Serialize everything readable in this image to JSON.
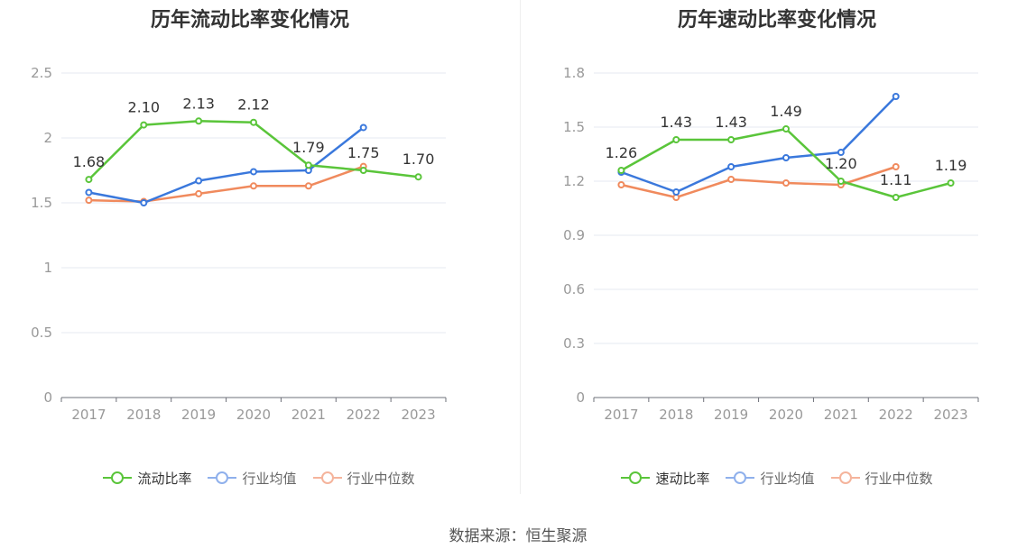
{
  "footer": {
    "source": "数据来源：恒生聚源"
  },
  "chart_data": [
    {
      "type": "line",
      "title": "历年流动比率变化情况",
      "x": [
        "2017",
        "2018",
        "2019",
        "2020",
        "2021",
        "2022",
        "2023"
      ],
      "ylim": [
        0,
        2.5
      ],
      "yticks": [
        "0",
        "0.5",
        "1",
        "1.5",
        "2",
        "2.5"
      ],
      "ytick_values": [
        0,
        0.5,
        1,
        1.5,
        2,
        2.5
      ],
      "grid": true,
      "legend_position": "bottom",
      "series": [
        {
          "name": "流动比率",
          "color": "#5ac53a",
          "values": [
            1.68,
            2.1,
            2.13,
            2.12,
            1.79,
            1.75,
            1.7
          ],
          "labels": [
            "1.68",
            "2.10",
            "2.13",
            "2.12",
            "1.79",
            "1.75",
            "1.70"
          ]
        },
        {
          "name": "行业均值",
          "color": "#3a78dc",
          "values": [
            1.58,
            1.5,
            1.67,
            1.74,
            1.75,
            2.08,
            null
          ]
        },
        {
          "name": "行业中位数",
          "color": "#f08a5d",
          "values": [
            1.52,
            1.51,
            1.57,
            1.63,
            1.63,
            1.78,
            null
          ]
        }
      ]
    },
    {
      "type": "line",
      "title": "历年速动比率变化情况",
      "x": [
        "2017",
        "2018",
        "2019",
        "2020",
        "2021",
        "2022",
        "2023"
      ],
      "ylim": [
        0,
        1.8
      ],
      "yticks": [
        "0",
        "0.3",
        "0.6",
        "0.9",
        "1.2",
        "1.5",
        "1.8"
      ],
      "ytick_values": [
        0,
        0.3,
        0.6,
        0.9,
        1.2,
        1.5,
        1.8
      ],
      "grid": true,
      "legend_position": "bottom",
      "series": [
        {
          "name": "速动比率",
          "color": "#5ac53a",
          "values": [
            1.26,
            1.43,
            1.43,
            1.49,
            1.2,
            1.11,
            1.19
          ],
          "labels": [
            "1.26",
            "1.43",
            "1.43",
            "1.49",
            "1.20",
            "1.11",
            "1.19"
          ]
        },
        {
          "name": "行业均值",
          "color": "#3a78dc",
          "values": [
            1.25,
            1.14,
            1.28,
            1.33,
            1.36,
            1.67,
            null
          ]
        },
        {
          "name": "行业中位数",
          "color": "#f08a5d",
          "values": [
            1.18,
            1.11,
            1.21,
            1.19,
            1.18,
            1.28,
            null
          ]
        }
      ]
    }
  ],
  "legend_colors": {
    "primary": "#5ac53a",
    "avg": "#8fb0ec",
    "median": "#f5b49c"
  }
}
